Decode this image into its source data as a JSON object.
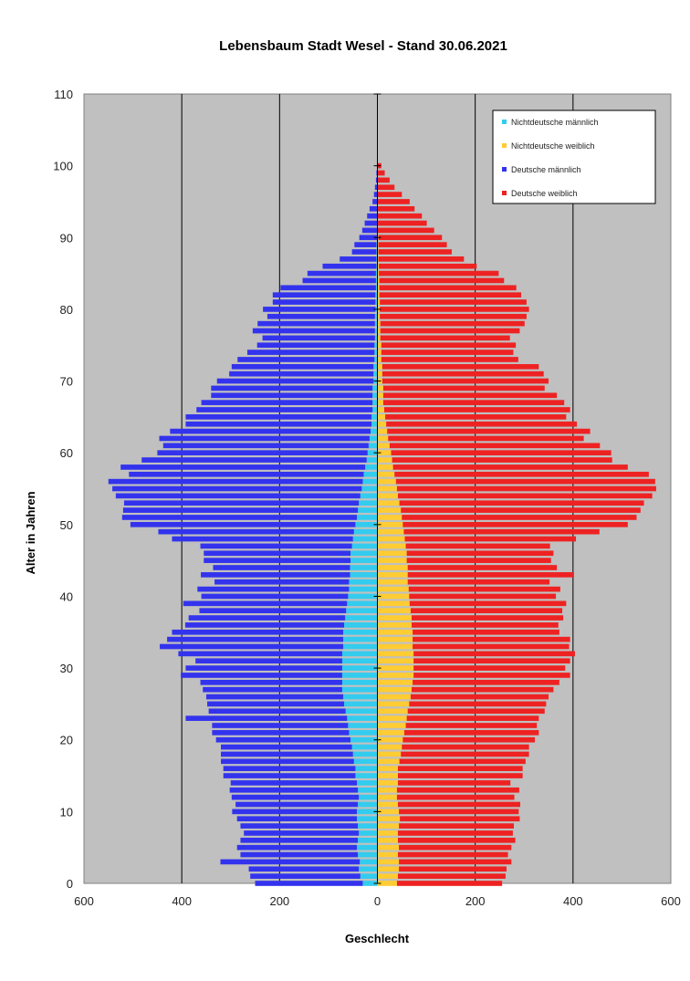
{
  "chart_data": {
    "type": "bar",
    "orientation": "horizontal-population-pyramid",
    "title": "Lebensbaum Stadt Wesel - Stand 30.06.2021",
    "xlabel": "Geschlecht",
    "ylabel": "Alter in Jahren",
    "xlim": [
      -600,
      600
    ],
    "ylim": [
      0,
      110
    ],
    "x_ticks": [
      -600,
      -400,
      -200,
      0,
      200,
      400,
      600
    ],
    "x_tick_labels": [
      "600",
      "400",
      "200",
      "0",
      "200",
      "400",
      "600"
    ],
    "y_ticks": [
      0,
      10,
      20,
      30,
      40,
      50,
      60,
      70,
      80,
      90,
      100,
      110
    ],
    "grid": "vertical",
    "legend_position": "top-right",
    "stacked": true,
    "ages": [
      0,
      1,
      2,
      3,
      4,
      5,
      6,
      7,
      8,
      9,
      10,
      11,
      12,
      13,
      14,
      15,
      16,
      17,
      18,
      19,
      20,
      21,
      22,
      23,
      24,
      25,
      26,
      27,
      28,
      29,
      30,
      31,
      32,
      33,
      34,
      35,
      36,
      37,
      38,
      39,
      40,
      41,
      42,
      43,
      44,
      45,
      46,
      47,
      48,
      49,
      50,
      51,
      52,
      53,
      54,
      55,
      56,
      57,
      58,
      59,
      60,
      61,
      62,
      63,
      64,
      65,
      66,
      67,
      68,
      69,
      70,
      71,
      72,
      73,
      74,
      75,
      76,
      77,
      78,
      79,
      80,
      81,
      82,
      83,
      84,
      85,
      86,
      87,
      88,
      89,
      90,
      91,
      92,
      93,
      94,
      95,
      96,
      97,
      98,
      99,
      100
    ],
    "series": [
      {
        "name": "Nichtdeutsche männlich",
        "color": "#33CCEE",
        "side": "left",
        "values": [
          30,
          35,
          38,
          36,
          40,
          42,
          40,
          38,
          40,
          42,
          42,
          40,
          38,
          40,
          42,
          45,
          45,
          48,
          50,
          52,
          55,
          58,
          60,
          62,
          65,
          68,
          70,
          72,
          72,
          72,
          72,
          72,
          72,
          70,
          70,
          70,
          68,
          66,
          64,
          62,
          60,
          58,
          58,
          56,
          56,
          55,
          55,
          52,
          50,
          48,
          45,
          42,
          40,
          38,
          35,
          32,
          30,
          28,
          25,
          22,
          20,
          18,
          16,
          14,
          12,
          12,
          10,
          10,
          10,
          10,
          8,
          8,
          8,
          6,
          6,
          6,
          5,
          5,
          5,
          5,
          4,
          4,
          4,
          3,
          3,
          3,
          2,
          2,
          2,
          2,
          1,
          1,
          1,
          1,
          1,
          0,
          0,
          0,
          0,
          0,
          0
        ]
      },
      {
        "name": "Nichtdeutsche weiblich",
        "color": "#FFCC33",
        "side": "right",
        "values": [
          40,
          42,
          44,
          44,
          42,
          44,
          42,
          42,
          44,
          46,
          44,
          42,
          40,
          40,
          42,
          42,
          42,
          45,
          48,
          50,
          52,
          55,
          58,
          60,
          62,
          65,
          68,
          70,
          72,
          74,
          74,
          74,
          74,
          72,
          72,
          72,
          70,
          70,
          68,
          66,
          65,
          64,
          62,
          62,
          62,
          60,
          60,
          58,
          56,
          54,
          52,
          50,
          48,
          45,
          42,
          40,
          38,
          35,
          32,
          30,
          28,
          25,
          22,
          20,
          18,
          16,
          14,
          12,
          12,
          12,
          10,
          10,
          10,
          8,
          8,
          8,
          6,
          6,
          6,
          5,
          5,
          5,
          4,
          4,
          4,
          3,
          3,
          2,
          2,
          2,
          2,
          1,
          1,
          1,
          1,
          1,
          0,
          0,
          0,
          0,
          0
        ]
      },
      {
        "name": "Deutsche männlich",
        "color": "#3333EE",
        "side": "left",
        "values": [
          220,
          225,
          225,
          285,
          240,
          245,
          240,
          235,
          240,
          245,
          255,
          250,
          260,
          262,
          258,
          270,
          270,
          272,
          270,
          268,
          275,
          280,
          278,
          330,
          280,
          280,
          280,
          285,
          290,
          330,
          320,
          300,
          335,
          375,
          360,
          350,
          325,
          320,
          300,
          335,
          300,
          310,
          275,
          305,
          280,
          300,
          300,
          310,
          370,
          400,
          460,
          480,
          480,
          480,
          500,
          510,
          520,
          480,
          500,
          460,
          430,
          420,
          430,
          410,
          380,
          380,
          360,
          350,
          330,
          330,
          320,
          295,
          290,
          280,
          260,
          240,
          230,
          250,
          240,
          220,
          230,
          210,
          210,
          195,
          150,
          140,
          110,
          75,
          50,
          45,
          36,
          30,
          25,
          20,
          15,
          10,
          7,
          5,
          3,
          2,
          1
        ]
      },
      {
        "name": "Deutsche weiblich",
        "color": "#EE2222",
        "side": "right",
        "values": [
          215,
          220,
          220,
          230,
          225,
          230,
          240,
          235,
          235,
          245,
          245,
          250,
          240,
          250,
          230,
          255,
          255,
          258,
          262,
          260,
          270,
          275,
          268,
          270,
          280,
          280,
          282,
          290,
          300,
          320,
          310,
          320,
          330,
          320,
          322,
          300,
          300,
          310,
          310,
          320,
          300,
          310,
          290,
          340,
          305,
          295,
          300,
          295,
          350,
          400,
          460,
          480,
          490,
          500,
          520,
          530,
          530,
          520,
          480,
          450,
          450,
          430,
          400,
          415,
          390,
          370,
          380,
          370,
          355,
          330,
          340,
          330,
          320,
          280,
          270,
          275,
          265,
          285,
          295,
          300,
          305,
          300,
          290,
          280,
          255,
          245,
          200,
          175,
          150,
          140,
          130,
          115,
          100,
          90,
          75,
          65,
          50,
          35,
          25,
          15,
          8
        ]
      }
    ]
  }
}
